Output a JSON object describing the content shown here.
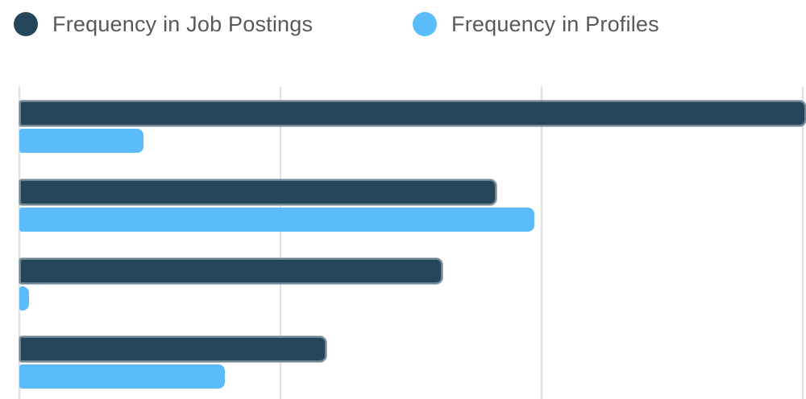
{
  "legend": {
    "items": [
      {
        "label": "Frequency in Job Postings",
        "color": "#24455a"
      },
      {
        "label": "Frequency in Profiles",
        "color": "#5bbcfc"
      }
    ]
  },
  "colors": {
    "series_job_postings": "#24455a",
    "series_profiles": "#5bbcfc",
    "gridline": "#e0e0e0",
    "legend_text": "#595959",
    "background": "#ffffff"
  },
  "chart_data": {
    "type": "bar",
    "orientation": "horizontal",
    "title": "",
    "categories": [
      "",
      "",
      "",
      ""
    ],
    "category_labels_visible": false,
    "series": [
      {
        "name": "Frequency in Job Postings",
        "color": "#24455a",
        "values": [
          100.4,
          60.9,
          54.0,
          39.2
        ],
        "clipped": [
          true,
          false,
          false,
          false
        ]
      },
      {
        "name": "Frequency in Profiles",
        "color": "#5bbcfc",
        "values": [
          15.8,
          65.7,
          1.2,
          26.2
        ],
        "clipped": [
          false,
          false,
          false,
          false
        ]
      }
    ],
    "value_axis": {
      "unit": "percent of visible axis width (tick labels not shown in screenshot)",
      "range_visible": [
        0,
        100
      ],
      "gridlines_at": [
        0,
        33.3,
        66.7,
        100
      ],
      "tick_labels_visible": false
    },
    "legend_position": "top",
    "grid": true,
    "notes": "First job-postings bar runs past the right edge of the image; chart is cropped at the bottom (more rows may exist) and category labels are not visible."
  }
}
